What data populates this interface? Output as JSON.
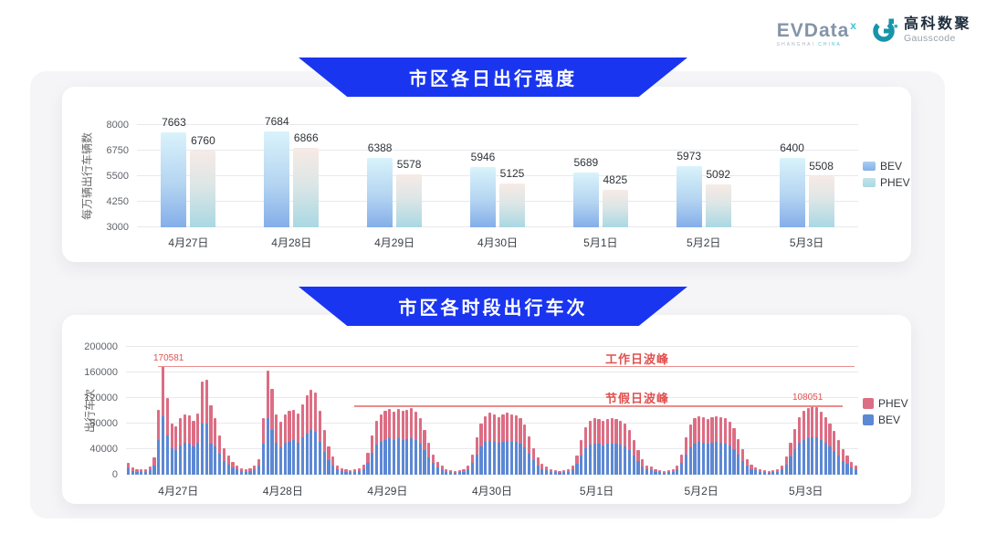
{
  "header": {
    "evdata": {
      "text": "EVData",
      "sup": "x",
      "sub_left": "SHANGHAI",
      "sub_right": "CHINA"
    },
    "gausscode": {
      "cn": "高科数聚",
      "en": "Gausscode"
    }
  },
  "colors": {
    "banner_blue": "#1a35f0",
    "bev_bar": "#5c88d4",
    "phev_bar": "#dc6d84",
    "annotation_red": "#e0514f",
    "bev_gradient_top": "#d9f3fb",
    "bev_gradient_bottom": "#84aee9",
    "phev_gradient_top": "#f7eae6",
    "phev_gradient_bottom": "#a9d8e3"
  },
  "chart_data": [
    {
      "type": "bar",
      "title": "市区各日出行强度",
      "ylabel": "每万辆出行车辆数",
      "categories": [
        "4月27日",
        "4月28日",
        "4月29日",
        "4月30日",
        "5月1日",
        "5月2日",
        "5月3日"
      ],
      "series": [
        {
          "name": "BEV",
          "values": [
            7663,
            7684,
            6388,
            5946,
            5689,
            5973,
            6400
          ]
        },
        {
          "name": "PHEV",
          "values": [
            6760,
            6866,
            5578,
            5125,
            4825,
            5092,
            5508
          ]
        }
      ],
      "ylim": [
        3000,
        8000
      ],
      "yticks": [
        3000,
        4250,
        5500,
        6750,
        8000
      ],
      "legend": [
        "BEV",
        "PHEV"
      ],
      "legend_position": "right",
      "grid": true
    },
    {
      "type": "bar",
      "subtype": "stacked-hourly",
      "title": "市区各时段出行车次",
      "ylabel": "出行车次",
      "categories": [
        "4月27日",
        "4月28日",
        "4月29日",
        "4月30日",
        "5月1日",
        "5月2日",
        "5月3日"
      ],
      "hours_per_day": 24,
      "ylim": [
        0,
        200000
      ],
      "yticks": [
        0,
        40000,
        80000,
        120000,
        160000,
        200000
      ],
      "legend": [
        "PHEV",
        "BEV"
      ],
      "legend_position": "right",
      "grid": true,
      "annotations": [
        {
          "label": "工作日波峰",
          "value": 170581,
          "value_label": "170581"
        },
        {
          "label": "节假日波峰",
          "value": 108051,
          "value_label": "108051"
        }
      ],
      "series": [
        {
          "name": "BEV",
          "values_by_day": [
            [
              10000,
              6000,
              5000,
              4000,
              5000,
              7000,
              15000,
              55000,
              91000,
              62000,
              41000,
              39000,
              46000,
              50000,
              49000,
              44000,
              50000,
              80000,
              80000,
              48000,
              44000,
              33000,
              22000,
              16000
            ],
            [
              11000,
              8000,
              6000,
              5000,
              6000,
              8000,
              14000,
              48000,
              88000,
              70000,
              50000,
              43000,
              50000,
              52000,
              54000,
              50000,
              58000,
              65000,
              70000,
              67000,
              52000,
              36000,
              23000,
              15000
            ],
            [
              8000,
              6000,
              4000,
              4000,
              4000,
              6000,
              9000,
              19000,
              34000,
              47000,
              52000,
              55000,
              57000,
              54000,
              57000,
              55000,
              56000,
              57000,
              54000,
              48000,
              38000,
              27000,
              18000,
              11000
            ],
            [
              8000,
              5000,
              4000,
              3000,
              4000,
              5000,
              8000,
              18000,
              32000,
              44000,
              51000,
              53000,
              52000,
              50000,
              52000,
              53000,
              52000,
              51000,
              48000,
              43000,
              33000,
              23000,
              15000,
              9000
            ],
            [
              7000,
              5000,
              4000,
              3000,
              4000,
              5000,
              8000,
              17000,
              30000,
              41000,
              47000,
              48000,
              48000,
              46000,
              48000,
              48000,
              48000,
              47000,
              44000,
              39000,
              30000,
              21000,
              13000,
              8000
            ],
            [
              7000,
              5000,
              4000,
              3000,
              4000,
              5000,
              8000,
              18000,
              32000,
              43000,
              48000,
              51000,
              50000,
              48000,
              50000,
              51000,
              50000,
              48000,
              46000,
              40000,
              31000,
              22000,
              14000,
              9000
            ],
            [
              7000,
              5000,
              4000,
              3000,
              4000,
              5000,
              8000,
              16000,
              28000,
              40000,
              50000,
              55000,
              57000,
              59000,
              58000,
              54000,
              50000,
              44000,
              37000,
              30000,
              22000,
              17000,
              11000,
              8000
            ]
          ]
        },
        {
          "name": "PHEV",
          "values_by_day": [
            [
              8000,
              5000,
              4000,
              4000,
              4000,
              6000,
              12000,
              46000,
              79581,
              58000,
              39000,
              37000,
              43000,
              45000,
              44000,
              41000,
              46000,
              66000,
              69000,
              61000,
              45000,
              29000,
              20000,
              14000
            ],
            [
              9000,
              6000,
              4000,
              4000,
              4000,
              6000,
              11000,
              40000,
              75000,
              65000,
              45000,
              40000,
              45000,
              48000,
              48000,
              46000,
              52000,
              60000,
              63000,
              61000,
              48000,
              34000,
              22000,
              13000
            ],
            [
              7000,
              4000,
              4000,
              3000,
              4000,
              4000,
              7000,
              16000,
              28000,
              38000,
              43000,
              45000,
              46000,
              44000,
              46000,
              45000,
              46000,
              47000,
              44000,
              40000,
              32000,
              23000,
              14000,
              9000
            ],
            [
              6000,
              4000,
              3000,
              3000,
              3000,
              4000,
              7000,
              14000,
              26000,
              36000,
              41000,
              44000,
              43000,
              40000,
              43000,
              44000,
              43000,
              42000,
              40000,
              35000,
              27000,
              19000,
              12000,
              8000
            ],
            [
              6000,
              4000,
              3000,
              3000,
              3000,
              4000,
              6000,
              13000,
              25000,
              34000,
              38000,
              40000,
              39000,
              38000,
              39000,
              40000,
              39000,
              38000,
              36000,
              31000,
              24000,
              17000,
              11000,
              7000
            ],
            [
              6000,
              4000,
              3000,
              3000,
              3000,
              4000,
              7000,
              14000,
              26000,
              35000,
              40000,
              41000,
              40000,
              39000,
              40000,
              41000,
              40000,
              40000,
              37000,
              33000,
              25000,
              18000,
              11000,
              7000
            ],
            [
              5000,
              4000,
              3000,
              3000,
              3000,
              4000,
              6000,
              12000,
              22000,
              32000,
              40000,
              45000,
              47000,
              49051,
              48000,
              44000,
              40000,
              36000,
              31000,
              25000,
              18000,
              13000,
              9000,
              6000
            ]
          ]
        }
      ]
    }
  ]
}
